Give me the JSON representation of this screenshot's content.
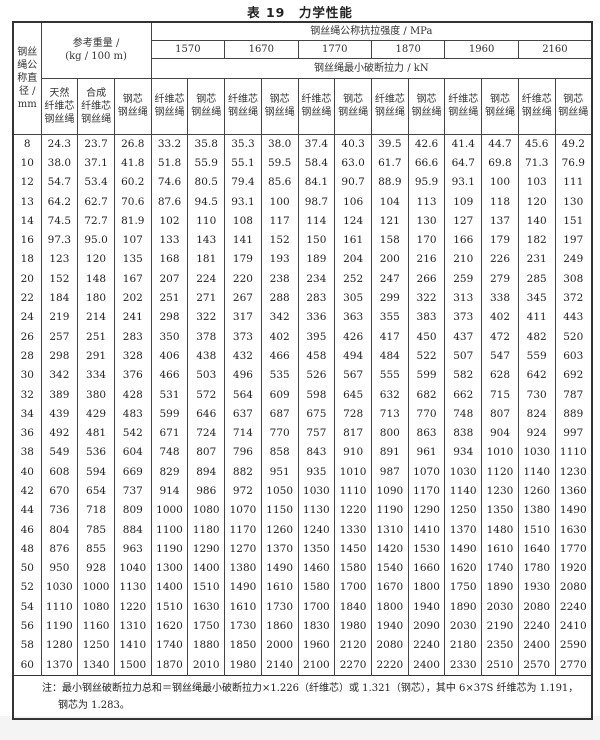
{
  "title": "表 19　力学性能",
  "header": {
    "diameter": [
      "钢丝",
      "绳公",
      "称直",
      "径 /",
      "mm"
    ],
    "weight_group": "参考重量 /",
    "weight_unit": "(kg / 100 m)",
    "strength_group": "钢丝绳公称抗拉强度 / MPa",
    "grades": [
      "1570",
      "1670",
      "1770",
      "1870",
      "1960",
      "2160"
    ],
    "breaking_force": "钢丝绳最小破断拉力 / kN",
    "weight_cols": [
      [
        "天然",
        "纤维芯",
        "钢丝绳"
      ],
      [
        "合成",
        "纤维芯",
        "钢丝绳"
      ],
      [
        "钢芯",
        "钢丝绳"
      ]
    ],
    "fiber_core": [
      "纤维芯",
      "钢丝绳"
    ],
    "steel_core": [
      "钢芯",
      "钢丝绳"
    ]
  },
  "rows": [
    [
      "8",
      "24.3",
      "23.7",
      "26.8",
      "33.2",
      "35.8",
      "35.3",
      "38.0",
      "37.4",
      "40.3",
      "39.5",
      "42.6",
      "41.4",
      "44.7",
      "45.6",
      "49.2"
    ],
    [
      "10",
      "38.0",
      "37.1",
      "41.8",
      "51.8",
      "55.9",
      "55.1",
      "59.5",
      "58.4",
      "63.0",
      "61.7",
      "66.6",
      "64.7",
      "69.8",
      "71.3",
      "76.9"
    ],
    [
      "12",
      "54.7",
      "53.4",
      "60.2",
      "74.6",
      "80.5",
      "79.4",
      "85.6",
      "84.1",
      "90.7",
      "88.9",
      "95.9",
      "93.1",
      "100",
      "103",
      "111"
    ],
    [
      "13",
      "64.2",
      "62.7",
      "70.6",
      "87.6",
      "94.5",
      "93.1",
      "100",
      "98.7",
      "106",
      "104",
      "113",
      "109",
      "118",
      "120",
      "130"
    ],
    [
      "14",
      "74.5",
      "72.7",
      "81.9",
      "102",
      "110",
      "108",
      "117",
      "114",
      "124",
      "121",
      "130",
      "127",
      "137",
      "140",
      "151"
    ],
    [
      "16",
      "97.3",
      "95.0",
      "107",
      "133",
      "143",
      "141",
      "152",
      "150",
      "161",
      "158",
      "170",
      "166",
      "179",
      "182",
      "197"
    ],
    [
      "18",
      "123",
      "120",
      "135",
      "168",
      "181",
      "179",
      "193",
      "189",
      "204",
      "200",
      "216",
      "210",
      "226",
      "231",
      "249"
    ],
    [
      "20",
      "152",
      "148",
      "167",
      "207",
      "224",
      "220",
      "238",
      "234",
      "252",
      "247",
      "266",
      "259",
      "279",
      "285",
      "308"
    ],
    [
      "22",
      "184",
      "180",
      "202",
      "251",
      "271",
      "267",
      "288",
      "283",
      "305",
      "299",
      "322",
      "313",
      "338",
      "345",
      "372"
    ],
    [
      "24",
      "219",
      "214",
      "241",
      "298",
      "322",
      "317",
      "342",
      "336",
      "363",
      "355",
      "383",
      "373",
      "402",
      "411",
      "443"
    ],
    [
      "26",
      "257",
      "251",
      "283",
      "350",
      "378",
      "373",
      "402",
      "395",
      "426",
      "417",
      "450",
      "437",
      "472",
      "482",
      "520"
    ],
    [
      "28",
      "298",
      "291",
      "328",
      "406",
      "438",
      "432",
      "466",
      "458",
      "494",
      "484",
      "522",
      "507",
      "547",
      "559",
      "603"
    ],
    [
      "30",
      "342",
      "334",
      "376",
      "466",
      "503",
      "496",
      "535",
      "526",
      "567",
      "555",
      "599",
      "582",
      "628",
      "642",
      "692"
    ],
    [
      "32",
      "389",
      "380",
      "428",
      "531",
      "572",
      "564",
      "609",
      "598",
      "645",
      "632",
      "682",
      "662",
      "715",
      "730",
      "787"
    ],
    [
      "34",
      "439",
      "429",
      "483",
      "599",
      "646",
      "637",
      "687",
      "675",
      "728",
      "713",
      "770",
      "748",
      "807",
      "824",
      "889"
    ],
    [
      "36",
      "492",
      "481",
      "542",
      "671",
      "724",
      "714",
      "770",
      "757",
      "817",
      "800",
      "863",
      "838",
      "904",
      "924",
      "997"
    ],
    [
      "38",
      "549",
      "536",
      "604",
      "748",
      "807",
      "796",
      "858",
      "843",
      "910",
      "891",
      "961",
      "934",
      "1010",
      "1030",
      "1110"
    ],
    [
      "40",
      "608",
      "594",
      "669",
      "829",
      "894",
      "882",
      "951",
      "935",
      "1010",
      "987",
      "1070",
      "1030",
      "1120",
      "1140",
      "1230"
    ],
    [
      "42",
      "670",
      "654",
      "737",
      "914",
      "986",
      "972",
      "1050",
      "1030",
      "1110",
      "1090",
      "1170",
      "1140",
      "1230",
      "1260",
      "1360"
    ],
    [
      "44",
      "736",
      "718",
      "809",
      "1000",
      "1080",
      "1070",
      "1150",
      "1130",
      "1220",
      "1190",
      "1290",
      "1250",
      "1350",
      "1380",
      "1490"
    ],
    [
      "46",
      "804",
      "785",
      "884",
      "1100",
      "1180",
      "1170",
      "1260",
      "1240",
      "1330",
      "1310",
      "1410",
      "1370",
      "1480",
      "1510",
      "1630"
    ],
    [
      "48",
      "876",
      "855",
      "963",
      "1190",
      "1290",
      "1270",
      "1370",
      "1350",
      "1450",
      "1420",
      "1530",
      "1490",
      "1610",
      "1640",
      "1770"
    ],
    [
      "50",
      "950",
      "928",
      "1040",
      "1300",
      "1400",
      "1380",
      "1490",
      "1460",
      "1580",
      "1540",
      "1660",
      "1620",
      "1740",
      "1780",
      "1920"
    ],
    [
      "52",
      "1030",
      "1000",
      "1130",
      "1400",
      "1510",
      "1490",
      "1610",
      "1580",
      "1700",
      "1670",
      "1800",
      "1750",
      "1890",
      "1930",
      "2080"
    ],
    [
      "54",
      "1110",
      "1080",
      "1220",
      "1510",
      "1630",
      "1610",
      "1730",
      "1700",
      "1840",
      "1800",
      "1940",
      "1890",
      "2030",
      "2080",
      "2240"
    ],
    [
      "56",
      "1190",
      "1160",
      "1310",
      "1620",
      "1750",
      "1730",
      "1860",
      "1830",
      "1980",
      "1940",
      "2090",
      "2030",
      "2190",
      "2240",
      "2410"
    ],
    [
      "58",
      "1280",
      "1250",
      "1410",
      "1740",
      "1880",
      "1850",
      "2000",
      "1960",
      "2120",
      "2080",
      "2240",
      "2180",
      "2350",
      "2400",
      "2590"
    ],
    [
      "60",
      "1370",
      "1340",
      "1500",
      "1870",
      "2010",
      "1980",
      "2140",
      "2100",
      "2270",
      "2220",
      "2400",
      "2330",
      "2510",
      "2570",
      "2770"
    ]
  ],
  "note": {
    "line1": "注：最小钢丝破断拉力总和＝钢丝绳最小破断拉力×1.226（纤维芯）或 1.321（钢芯），其中 6×37S 纤维芯为 1.191，",
    "line2": "钢芯为 1.283。"
  }
}
